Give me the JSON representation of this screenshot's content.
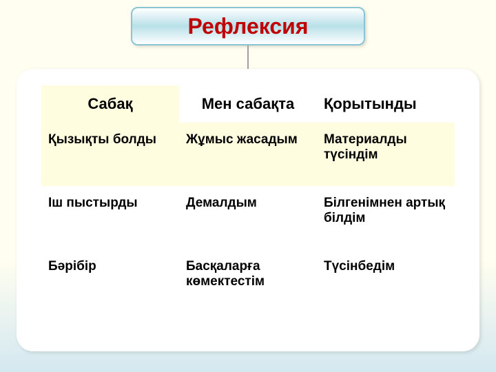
{
  "title": "Рефлексия",
  "title_color": "#c00000",
  "title_fontsize": 32,
  "title_box": {
    "gradient_top": "#ffffff",
    "gradient_mid": "#b8e0e8",
    "gradient_bottom": "#ffffff",
    "border_color": "#88c4d4"
  },
  "background": {
    "top_color": "#fffef0",
    "bottom_color": "#d4e8f0"
  },
  "panel": {
    "background": "#ffffff",
    "border_radius": 24
  },
  "table": {
    "type": "table",
    "header_fontsize": 22,
    "cell_fontsize": 19,
    "text_color": "#000000",
    "highlight_bg": "#fffde0",
    "columns": [
      "Сабақ",
      "Мен сабақта",
      "Қорытынды"
    ],
    "rows": [
      [
        "Қызықты болды",
        "Жұмыс жасадым",
        "Материалды түсіндім"
      ],
      [
        "Іш пыстырды",
        "Демалдым",
        "Білгенімнен артық білдім"
      ],
      [
        "Бәрібір",
        "Басқаларға көмектестім",
        "Түсінбедім"
      ]
    ]
  }
}
